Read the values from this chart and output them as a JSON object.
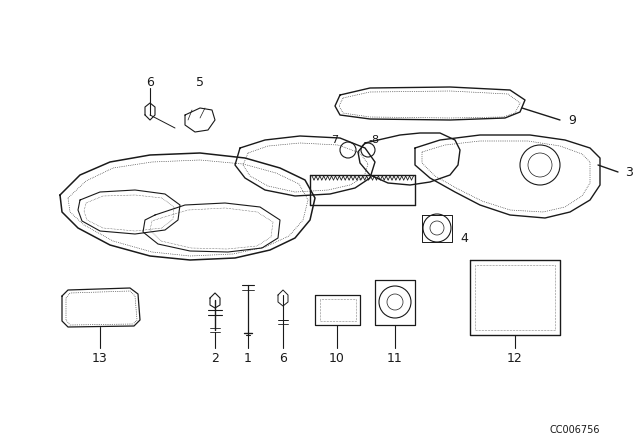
{
  "background_color": "#ffffff",
  "line_color": "#1a1a1a",
  "figure_width": 6.4,
  "figure_height": 4.48,
  "dpi": 100,
  "watermark": "CC006756",
  "watermark_fontsize": 7
}
